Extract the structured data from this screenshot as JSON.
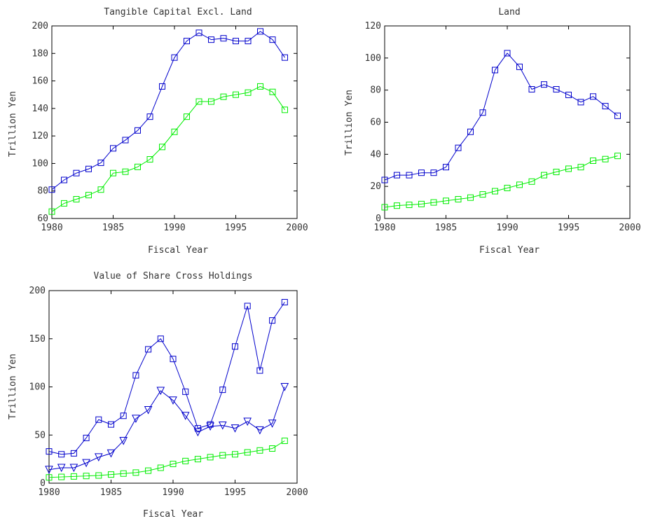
{
  "chart_data": [
    {
      "type": "line",
      "title": "Tangible Capital Excl. Land",
      "xlabel": "Fiscal Year",
      "ylabel": "Trillion Yen",
      "xlim": [
        1980,
        2000
      ],
      "ylim": [
        60,
        200
      ],
      "xticks": [
        1980,
        1985,
        1990,
        1995,
        2000
      ],
      "yticks": [
        60,
        80,
        100,
        120,
        140,
        160,
        180,
        200
      ],
      "x": [
        1980,
        1981,
        1982,
        1983,
        1984,
        1985,
        1986,
        1987,
        1988,
        1989,
        1990,
        1991,
        1992,
        1993,
        1994,
        1995,
        1996,
        1997,
        1998,
        1999
      ],
      "series": [
        {
          "color": "#0000cc",
          "marker": "square",
          "values": [
            81,
            88,
            93,
            96,
            100.5,
            111,
            117,
            124,
            134,
            156,
            177,
            189,
            195,
            190,
            191,
            189,
            189,
            196,
            190,
            177
          ]
        },
        {
          "color": "#00ee00",
          "marker": "square",
          "values": [
            65,
            71,
            74,
            77,
            81,
            93,
            94,
            97.5,
            103,
            112,
            123,
            134,
            145,
            145,
            148.5,
            150,
            151.5,
            156,
            152,
            139
          ]
        }
      ]
    },
    {
      "type": "line",
      "title": "Land",
      "xlabel": "Fiscal Year",
      "ylabel": "Trillion Yen",
      "xlim": [
        1980,
        2000
      ],
      "ylim": [
        0,
        120
      ],
      "xticks": [
        1980,
        1985,
        1990,
        1995,
        2000
      ],
      "yticks": [
        0,
        20,
        40,
        60,
        80,
        100,
        120
      ],
      "x": [
        1980,
        1981,
        1982,
        1983,
        1984,
        1985,
        1986,
        1987,
        1988,
        1989,
        1990,
        1991,
        1992,
        1993,
        1994,
        1995,
        1996,
        1997,
        1998,
        1999
      ],
      "series": [
        {
          "color": "#0000cc",
          "marker": "square",
          "values": [
            24,
            27,
            27,
            28.5,
            28.5,
            32,
            44,
            54,
            66,
            92.5,
            103,
            94.5,
            80.5,
            83.5,
            80.5,
            77,
            72.5,
            76,
            70,
            64
          ]
        },
        {
          "color": "#00ee00",
          "marker": "square",
          "values": [
            7,
            8,
            8.5,
            9,
            10,
            11,
            12,
            13,
            15,
            17,
            19,
            21,
            23,
            27,
            29,
            31,
            32,
            36,
            37,
            39
          ]
        }
      ]
    },
    {
      "type": "line",
      "title": "Value of Share Cross Holdings",
      "xlabel": "Fiscal Year",
      "ylabel": "Trillion Yen",
      "xlim": [
        1980,
        2000
      ],
      "ylim": [
        0,
        200
      ],
      "xticks": [
        1980,
        1985,
        1990,
        1995,
        2000
      ],
      "yticks": [
        0,
        50,
        100,
        150,
        200
      ],
      "x": [
        1980,
        1981,
        1982,
        1983,
        1984,
        1985,
        1986,
        1987,
        1988,
        1989,
        1990,
        1991,
        1992,
        1993,
        1994,
        1995,
        1996,
        1997,
        1998,
        1999
      ],
      "series": [
        {
          "color": "#0000cc",
          "marker": "square",
          "values": [
            33,
            30,
            31,
            47,
            66,
            61,
            70,
            112,
            139,
            150,
            129,
            95,
            57,
            61,
            97,
            142,
            184,
            117,
            169,
            188
          ]
        },
        {
          "color": "#0000cc",
          "marker": "triangle-down",
          "values": [
            14,
            16,
            16,
            21,
            27,
            31,
            44,
            67,
            76,
            96,
            86,
            70,
            53,
            59,
            60,
            57,
            64,
            55,
            62,
            100
          ]
        },
        {
          "color": "#00ee00",
          "marker": "square",
          "values": [
            6,
            6.5,
            7,
            7.5,
            8,
            9,
            10,
            11,
            13,
            16,
            20,
            23,
            25,
            27,
            29,
            30,
            32,
            34,
            36,
            44
          ]
        }
      ]
    }
  ]
}
